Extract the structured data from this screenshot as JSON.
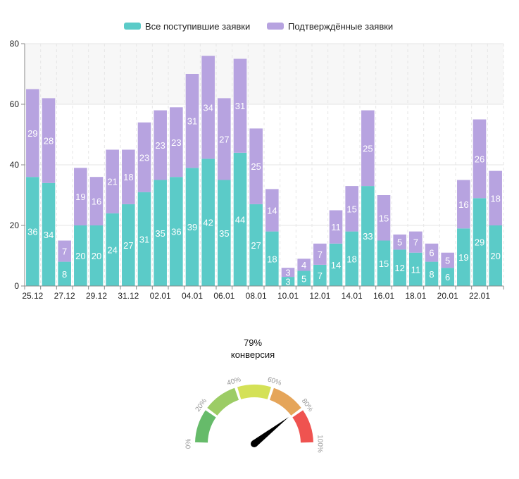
{
  "colors": {
    "series_all": "#5bcbc8",
    "series_confirmed": "#b7a3e0",
    "grid": "#e6e6e6",
    "axis": "#888888",
    "plot_band": "#f7f7f7"
  },
  "chart_data": [
    {
      "type": "bar",
      "stacked": true,
      "title": "",
      "xlabel": "",
      "ylabel": "",
      "ylim": [
        0,
        80
      ],
      "yticks": [
        "0",
        "20",
        "40",
        "60",
        "80"
      ],
      "legend_position": "top-center",
      "categories": [
        "25.12",
        "26.12",
        "27.12",
        "28.12",
        "29.12",
        "30.12",
        "31.12",
        "01.01",
        "02.01",
        "03.01",
        "04.01",
        "05.01",
        "06.01",
        "07.01",
        "08.01",
        "09.01",
        "10.01",
        "11.01",
        "12.01",
        "13.01",
        "14.01",
        "15.01",
        "16.01",
        "17.01",
        "18.01",
        "19.01",
        "20.01",
        "21.01",
        "22.01",
        "23.01"
      ],
      "xtick_labels": [
        "25.12",
        "27.12",
        "29.12",
        "31.12",
        "02.01",
        "04.01",
        "06.01",
        "08.01",
        "10.01",
        "12.01",
        "14.01",
        "16.01",
        "18.01",
        "20.01",
        "22.01"
      ],
      "series": [
        {
          "name": "Все поступившие заявки",
          "values": [
            36,
            34,
            8,
            20,
            20,
            24,
            27,
            31,
            35,
            36,
            39,
            42,
            35,
            44,
            27,
            18,
            3,
            5,
            7,
            14,
            18,
            33,
            15,
            12,
            11,
            8,
            6,
            19,
            29,
            20
          ]
        },
        {
          "name": "Подтверждённые заявки",
          "values": [
            29,
            28,
            7,
            19,
            16,
            21,
            18,
            23,
            23,
            23,
            31,
            34,
            27,
            31,
            25,
            14,
            3,
            4,
            7,
            11,
            15,
            25,
            15,
            5,
            7,
            6,
            5,
            16,
            26,
            18
          ]
        }
      ]
    },
    {
      "type": "gauge",
      "value_label": "79%",
      "caption": "конверсия",
      "value": 79,
      "range": [
        0,
        100
      ],
      "tick_labels": [
        "0%",
        "20%",
        "40%",
        "60%",
        "80%",
        "100%"
      ],
      "bands": [
        {
          "from": 0,
          "to": 20,
          "color": "#66bb6a"
        },
        {
          "from": 20,
          "to": 40,
          "color": "#9ccc65"
        },
        {
          "from": 40,
          "to": 60,
          "color": "#d4e157"
        },
        {
          "from": 60,
          "to": 80,
          "color": "#e5a55a"
        },
        {
          "from": 80,
          "to": 100,
          "color": "#ef5350"
        }
      ]
    }
  ]
}
